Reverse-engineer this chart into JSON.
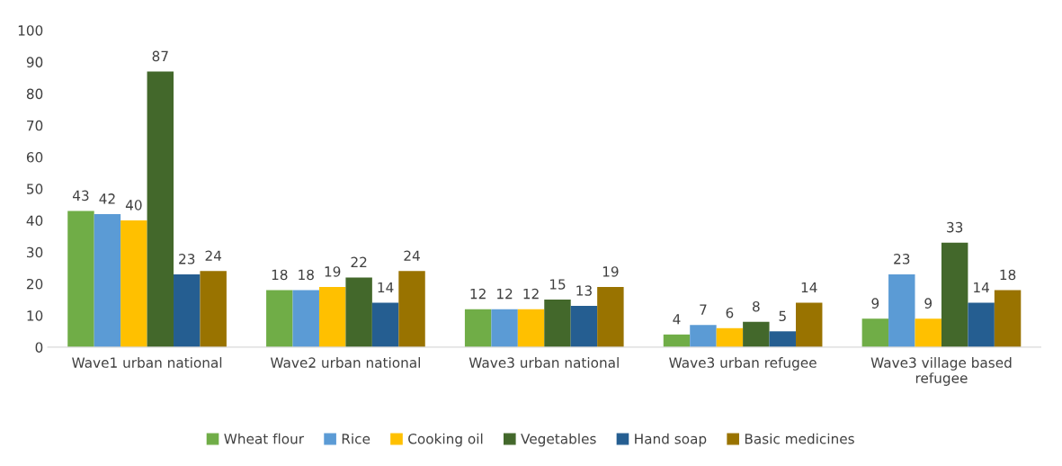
{
  "chart_data": {
    "type": "bar",
    "categories": [
      "Wave1 urban national",
      "Wave2 urban national",
      "Wave3 urban national",
      "Wave3 urban refugee",
      "Wave3 village based\nrefugee"
    ],
    "series": [
      {
        "name": "Wheat flour",
        "color": "#70ad47",
        "values": [
          43,
          18,
          12,
          4,
          9
        ]
      },
      {
        "name": "Rice",
        "color": "#5b9bd5",
        "values": [
          42,
          18,
          12,
          7,
          23
        ]
      },
      {
        "name": "Cooking oil",
        "color": "#ffc000",
        "values": [
          40,
          19,
          12,
          6,
          9
        ]
      },
      {
        "name": "Vegetables",
        "color": "#43682b",
        "values": [
          87,
          22,
          15,
          8,
          33
        ]
      },
      {
        "name": "Hand soap",
        "color": "#255e91",
        "values": [
          23,
          14,
          13,
          5,
          14
        ]
      },
      {
        "name": "Basic medicines",
        "color": "#997300",
        "values": [
          24,
          24,
          19,
          14,
          18
        ]
      }
    ],
    "ylim": [
      0,
      100
    ],
    "yticks": [
      0,
      10,
      20,
      30,
      40,
      50,
      60,
      70,
      80,
      90,
      100
    ],
    "data_labels": true,
    "grid": false,
    "legend": "bottom"
  }
}
